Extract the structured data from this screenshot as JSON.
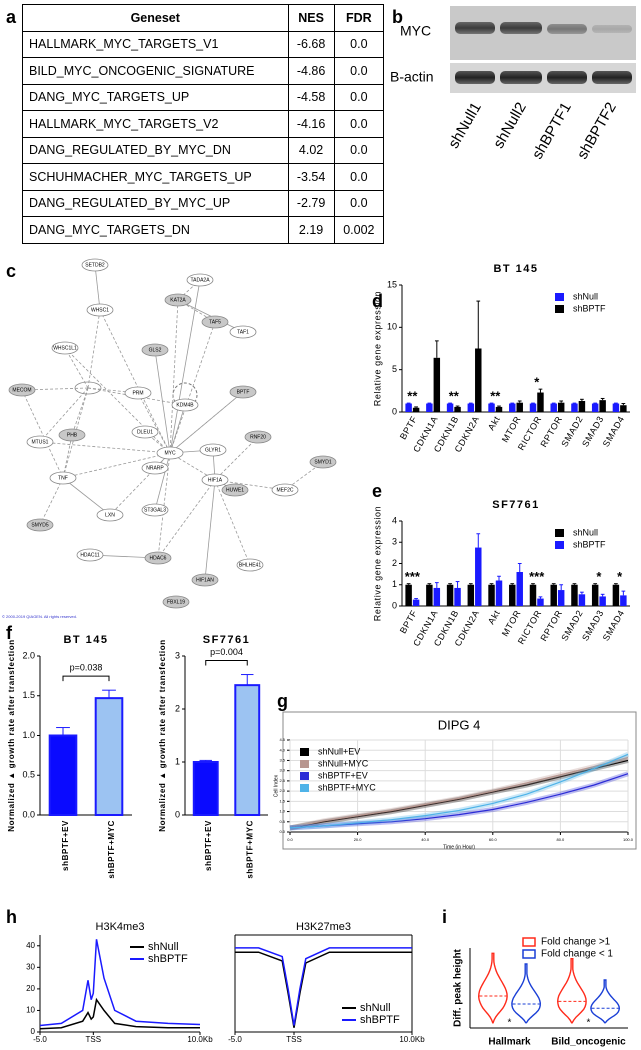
{
  "panel_labels": [
    "a",
    "b",
    "c",
    "d",
    "e",
    "f",
    "g",
    "h",
    "i"
  ],
  "table": {
    "header": [
      "Geneset",
      "NES",
      "FDR"
    ],
    "rows": [
      [
        "HALLMARK_MYC_TARGETS_V1",
        "-6.68",
        "0.0"
      ],
      [
        "BILD_MYC_ONCOGENIC_SIGNATURE",
        "-4.86",
        "0.0"
      ],
      [
        "DANG_MYC_TARGETS_UP",
        "-4.58",
        "0.0"
      ],
      [
        "HALLMARK_MYC_TARGETS_V2",
        "-4.16",
        "0.0"
      ],
      [
        "DANG_REGULATED_BY_MYC_DN",
        "4.02",
        "0.0"
      ],
      [
        "SCHUHMACHER_MYC_TARGETS_UP",
        "-3.54",
        "0.0"
      ],
      [
        "DANG_REGULATED_BY_MYC_UP",
        "-2.79",
        "0.0"
      ],
      [
        "DANG_MYC_TARGETS_DN",
        "2.19",
        "0.002"
      ]
    ]
  },
  "blot": {
    "proteins": [
      "MYC",
      "B-actin"
    ],
    "lanes": [
      "shNull1",
      "shNull2",
      "shBPTF1",
      "shBPTF2"
    ]
  },
  "network": {
    "nodes": [
      "SETDB2",
      "TADA2A",
      "WHSC1",
      "KAT2A",
      "TAF5",
      "TAF1",
      "WHSC1L1",
      "GLS2",
      "MECOM",
      "BPTF",
      "PHB",
      "DLEU1",
      "MYC",
      "GLYR1",
      "RNF20",
      "MTUS1",
      "TNF",
      "NRARP",
      "HIF1A",
      "SMYD1",
      "SMYD5",
      "LXN",
      "ST3GAL3",
      "HUWE1",
      "MEF2C",
      "HDAC11",
      "HDAC6",
      "BHLHE41",
      "HIF1AN",
      "FBXL19",
      "KDM4B",
      "PRM"
    ],
    "copyright": "© 2000-2019 QIAGEN. All rights reserved."
  },
  "chart_data": [
    {
      "type": "bar",
      "title": "BT 145",
      "ylabel": "Relative gene expression",
      "categories": [
        "BPTF",
        "CDKN1A",
        "CDKN1B",
        "CDKN2A",
        "Akt",
        "MTOR",
        "RICTOR",
        "RPTOR",
        "SMAD2",
        "SMAD3",
        "SMAD4"
      ],
      "series": [
        {
          "name": "shNull",
          "color": "#1a1aff",
          "values": [
            1,
            1,
            1,
            1,
            1,
            1,
            1,
            1,
            1,
            1,
            1
          ],
          "errors": [
            0.05,
            0.05,
            0.05,
            0.05,
            0.05,
            0.05,
            0.05,
            0.05,
            0.05,
            0.05,
            0.05
          ]
        },
        {
          "name": "shBPTF",
          "color": "#000000",
          "values": [
            0.5,
            6.4,
            0.6,
            7.5,
            0.6,
            1.1,
            2.3,
            1.1,
            1.3,
            1.4,
            0.8
          ],
          "errors": [
            0.1,
            2,
            0.1,
            5.6,
            0.1,
            0.2,
            0.4,
            0.2,
            0.2,
            0.2,
            0.2
          ]
        }
      ],
      "ylim": [
        0,
        15
      ],
      "yticks": [
        0,
        5,
        10,
        15
      ],
      "legend": "upper right",
      "annotations": [
        {
          "text": "**",
          "category": "BPTF"
        },
        {
          "text": "**",
          "category": "CDKN1B"
        },
        {
          "text": "**",
          "category": "Akt"
        },
        {
          "text": "*",
          "category": "RICTOR"
        }
      ]
    },
    {
      "type": "bar",
      "title": "SF7761",
      "ylabel": "Relative gene expression",
      "categories": [
        "BPTF",
        "CDKN1A",
        "CDKN1B",
        "CDKN2A",
        "Akt",
        "MTOR",
        "RICTOR",
        "RPTOR",
        "SMAD2",
        "SMAD3",
        "SMAD4"
      ],
      "series": [
        {
          "name": "shNull",
          "color": "#000000",
          "values": [
            1,
            1,
            1,
            1,
            1,
            1,
            1,
            1,
            1,
            1,
            1
          ],
          "errors": [
            0.05,
            0.05,
            0.05,
            0.05,
            0.05,
            0.05,
            0.05,
            0.05,
            0.05,
            0.05,
            0.05
          ]
        },
        {
          "name": "shBPTF",
          "color": "#1a1aff",
          "values": [
            0.3,
            0.85,
            0.85,
            2.75,
            1.2,
            1.6,
            0.35,
            0.75,
            0.55,
            0.45,
            0.5
          ],
          "errors": [
            0.05,
            0.25,
            0.3,
            0.65,
            0.2,
            0.4,
            0.08,
            0.25,
            0.1,
            0.1,
            0.2
          ]
        }
      ],
      "ylim": [
        0,
        4
      ],
      "yticks": [
        0,
        1,
        2,
        3,
        4
      ],
      "legend": "upper right",
      "annotations": [
        {
          "text": "***",
          "category": "BPTF"
        },
        {
          "text": "***",
          "category": "RICTOR"
        },
        {
          "text": "*",
          "category": "SMAD3"
        },
        {
          "text": "*",
          "category": "SMAD4"
        }
      ]
    },
    {
      "type": "bar",
      "title": "BT 145",
      "ylabel": "Normalized ▲ growth rate after transfection",
      "categories": [
        "shBPTF+EV",
        "shBPTF+MYC"
      ],
      "values": [
        1.0,
        1.47
      ],
      "errors": [
        0.1,
        0.1
      ],
      "colors": [
        "#0a0aff",
        "#9cc3f2"
      ],
      "edgecolor": "#1a1aff",
      "ylim": [
        0,
        2
      ],
      "yticks": [
        {
          "value": 0,
          "label": "0.0"
        },
        {
          "value": 0.5,
          "label": "0.5"
        },
        {
          "value": 1,
          "label": "1.0"
        },
        {
          "value": 1.5,
          "label": "1.5"
        },
        {
          "value": 2,
          "label": "2.0"
        }
      ],
      "annotation": "p=0.038"
    },
    {
      "type": "bar",
      "title": "SF7761",
      "ylabel": "Normalized ▲ growth rate after transfection",
      "categories": [
        "shBPTF+EV",
        "shBPTF+MYC"
      ],
      "values": [
        1.0,
        2.45
      ],
      "errors": [
        0.03,
        0.2
      ],
      "colors": [
        "#0a0aff",
        "#9cc3f2"
      ],
      "edgecolor": "#1a1aff",
      "ylim": [
        0,
        3
      ],
      "yticks": [
        0,
        1,
        2,
        3
      ],
      "annotation": "p=0.004"
    },
    {
      "type": "line",
      "title": "DIPG 4",
      "xlabel": "Time (in Hour)",
      "ylabel": "Cell Index",
      "x": [
        0,
        10,
        20,
        30,
        40,
        50,
        60,
        70,
        80,
        90,
        100
      ],
      "series": [
        {
          "name": "shNull+EV",
          "color": "#000000",
          "values": [
            0.2,
            0.5,
            0.75,
            1.0,
            1.3,
            1.6,
            1.95,
            2.3,
            2.7,
            3.1,
            3.5
          ]
        },
        {
          "name": "shNull+MYC",
          "color": "#b8968f",
          "values": [
            0.2,
            0.55,
            0.8,
            1.05,
            1.35,
            1.65,
            2.0,
            2.4,
            2.8,
            3.2,
            3.65
          ]
        },
        {
          "name": "shBPTF+EV",
          "color": "#2b2bd6",
          "values": [
            0.2,
            0.3,
            0.4,
            0.5,
            0.65,
            0.85,
            1.1,
            1.45,
            1.85,
            2.3,
            2.85
          ]
        },
        {
          "name": "shBPTF+MYC",
          "color": "#4fb3e8",
          "values": [
            0.2,
            0.3,
            0.45,
            0.6,
            0.8,
            1.05,
            1.4,
            1.85,
            2.45,
            3.1,
            3.8
          ]
        }
      ],
      "xlim": [
        0,
        100
      ],
      "xticks": [
        {
          "value": 0,
          "label": "0.0"
        },
        {
          "value": 20,
          "label": "20.0"
        },
        {
          "value": 40,
          "label": "40.0"
        },
        {
          "value": 60,
          "label": "60.0"
        },
        {
          "value": 80,
          "label": "80.0"
        },
        {
          "value": 100,
          "label": "100.0"
        }
      ],
      "ylim": [
        0,
        4.5
      ],
      "yticks": [
        {
          "value": 0,
          "label": "0.0"
        },
        {
          "value": 0.5,
          "label": "0.5"
        },
        {
          "value": 1,
          "label": "1.0"
        },
        {
          "value": 1.5,
          "label": "1.5"
        },
        {
          "value": 2,
          "label": "2.0"
        },
        {
          "value": 2.5,
          "label": "2.5"
        },
        {
          "value": 3,
          "label": "3.0"
        },
        {
          "value": 3.5,
          "label": "3.5"
        },
        {
          "value": 4,
          "label": "4.0"
        },
        {
          "value": 4.5,
          "label": "4.5"
        }
      ],
      "grid": true,
      "legend": "upper left"
    },
    {
      "type": "line",
      "title": "H3K4me3",
      "x": [
        -5,
        -3,
        -1,
        -0.5,
        -0.2,
        0,
        0.3,
        1,
        2,
        4,
        7,
        10
      ],
      "series": [
        {
          "name": "shNull",
          "color": "#000000",
          "values": [
            1.5,
            2,
            5,
            9,
            6,
            7,
            15,
            10,
            4,
            2.5,
            2,
            2
          ]
        },
        {
          "name": "shBPTF",
          "color": "#1a1aff",
          "values": [
            3,
            4,
            10,
            24,
            15,
            18,
            43,
            25,
            10,
            5,
            4,
            3.5
          ]
        }
      ],
      "xlim": [
        -5,
        10
      ],
      "xticks": [
        {
          "value": -5,
          "label": "-5.0"
        },
        {
          "value": 0,
          "label": "TSS"
        },
        {
          "value": 10,
          "label": "10.0Kb"
        }
      ],
      "ylim": [
        0,
        45
      ],
      "yticks": [
        0,
        10,
        20,
        30,
        40
      ],
      "legend": "upper right"
    },
    {
      "type": "line",
      "title": "H3K27me3",
      "x": [
        -5,
        -3,
        -1,
        -0.5,
        0,
        0.5,
        1,
        3,
        10
      ],
      "series": [
        {
          "name": "shNull",
          "color": "#000000",
          "values": [
            37,
            37,
            33,
            18,
            2,
            18,
            32,
            37,
            37
          ]
        },
        {
          "name": "shBPTF",
          "color": "#1a1aff",
          "values": [
            39,
            39,
            35,
            20,
            3,
            20,
            34,
            39,
            39
          ]
        }
      ],
      "xlim": [
        -5,
        10
      ],
      "xticks": [
        {
          "value": -5,
          "label": "-5.0"
        },
        {
          "value": 0,
          "label": "TSS"
        },
        {
          "value": 10,
          "label": "10.0Kb"
        }
      ],
      "ylim": [
        0,
        45
      ],
      "legend": "lower right"
    },
    {
      "type": "violin",
      "ylabel": "Diff. peak height",
      "categories": [
        "Hallmark",
        "Bild_oncogenic"
      ],
      "series": [
        {
          "name": "Fold change >1",
          "color": "#ff2a1a",
          "min": [
            10,
            10
          ],
          "median": [
            60,
            50
          ],
          "max": [
            140,
            130
          ]
        },
        {
          "name": "Fold change < 1",
          "color": "#1a3fd6",
          "min": [
            10,
            10
          ],
          "median": [
            45,
            37
          ],
          "max": [
            120,
            90
          ]
        }
      ],
      "ylim": [
        0,
        150
      ],
      "legend": "upper right",
      "annotations": [
        {
          "text": "*",
          "category": "Hallmark"
        },
        {
          "text": "*",
          "category": "Bild_oncogenic"
        }
      ]
    }
  ]
}
